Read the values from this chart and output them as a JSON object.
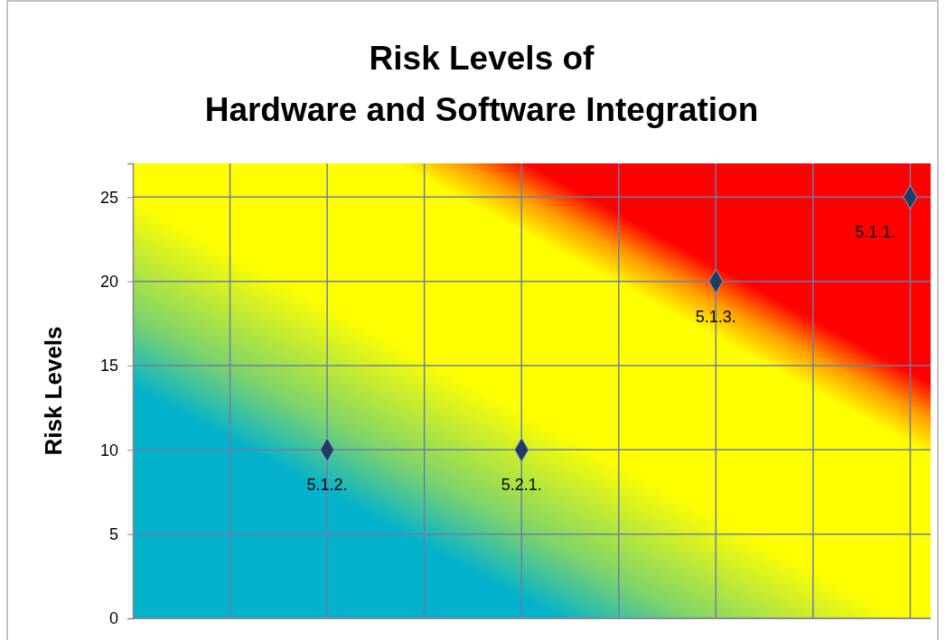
{
  "chart_data": {
    "type": "scatter",
    "title": "Risk Levels of\nHardware and Software Integration",
    "ylabel": "Risk Levels",
    "categories": [
      null,
      null,
      null,
      null,
      null,
      null,
      null,
      null
    ],
    "values": [
      null,
      10,
      null,
      10,
      null,
      20,
      null,
      25
    ],
    "color": "#1f3d63",
    "marker": "diamond",
    "value_labels": [
      null,
      "5.1.2.",
      null,
      "5.2.1.",
      null,
      "5.1.3.",
      null,
      "5.1.1."
    ],
    "ylim": [
      0,
      27
    ],
    "yticks": [
      0,
      5,
      10,
      15,
      20,
      25
    ],
    "grid": true,
    "tick_labels": "y"
  }
}
